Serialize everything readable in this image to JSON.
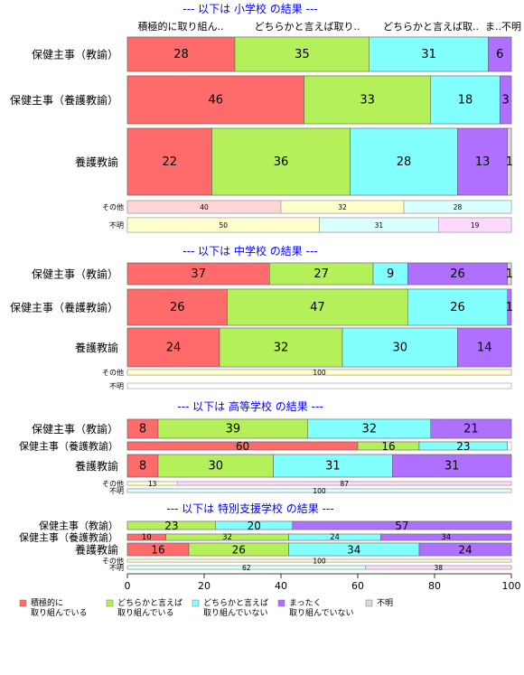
{
  "colors": {
    "積極的に取り組んでいる": "#ff6b6b",
    "どちらかと言えば取り組んでいる": "#b4f05a",
    "どちらかと言えば取り組んでいない": "#82ffff",
    "まったく取り組んでいない": "#b070ff",
    "不明": "#d9d9d9"
  },
  "light_colors": {
    "積極的に取り組んでいる": "#ffd6d6",
    "どちらかと言えば取り組んでいる": "#ffffcc",
    "どちらかと言えば取り組んでいない": "#d9ffff",
    "まったく取り組んでいない": "#ffd9ff",
    "不明": "#eeeeee"
  },
  "column_headers": [
    "積極的に取り組ん..",
    "どちらかと言えば取り..",
    "どちらかと言えば取..",
    "ま..",
    "不明"
  ],
  "legend": [
    {
      "key": "積極的に取り組んでいる",
      "line1": "積極的に",
      "line2": "取り組んでいる"
    },
    {
      "key": "どちらかと言えば取り組んでいる",
      "line1": "どちらかと言えば",
      "line2": "取り組んでいる"
    },
    {
      "key": "どちらかと言えば取り組んでいない",
      "line1": "どちらかと言えば",
      "line2": "取り組んでいない"
    },
    {
      "key": "まったく取り組んでいない",
      "line1": "まったく",
      "line2": "取り組んでいない"
    },
    {
      "key": "不明",
      "line1": "不明",
      "line2": ""
    }
  ],
  "chart_data": {
    "type": "bar",
    "orientation": "horizontal",
    "stacked": true,
    "xlim": [
      0,
      100
    ],
    "xticks": [
      0,
      20,
      40,
      60,
      80,
      100
    ],
    "series_names": [
      "積極的に取り組んでいる",
      "どちらかと言えば取り組んでいる",
      "どちらかと言えば取り組んでいない",
      "まったく取り組んでいない",
      "不明"
    ],
    "sections": [
      {
        "title": "--- 以下は 小学校 の結果 ---",
        "rows": [
          {
            "label": "保健主事（教諭）",
            "values": [
              28,
              35,
              31,
              6,
              0
            ]
          },
          {
            "label": "保健主事（養護教諭）",
            "values": [
              46,
              33,
              18,
              3,
              0
            ]
          },
          {
            "label": "養護教諭",
            "values": [
              22,
              36,
              28,
              13,
              1
            ]
          },
          {
            "label": "その他",
            "small": true,
            "values": [
              40,
              32,
              28,
              0,
              0
            ]
          },
          {
            "label": "不明",
            "small": true,
            "values": [
              0,
              50,
              31,
              19,
              0
            ]
          }
        ]
      },
      {
        "title": "--- 以下は 中学校 の結果 ---",
        "rows": [
          {
            "label": "保健主事（教諭）",
            "values": [
              37,
              27,
              9,
              26,
              1
            ]
          },
          {
            "label": "保健主事（養護教諭）",
            "values": [
              26,
              47,
              26,
              1,
              0
            ]
          },
          {
            "label": "養護教諭",
            "values": [
              24,
              32,
              30,
              14,
              0
            ]
          },
          {
            "label": "その他",
            "small": true,
            "values": [
              0,
              100,
              0,
              0,
              0
            ]
          },
          {
            "label": "不明",
            "small": true,
            "values": [
              0,
              0,
              0,
              0,
              0
            ]
          }
        ]
      },
      {
        "title": "--- 以下は 高等学校 の結果 ---",
        "rows": [
          {
            "label": "保健主事（教諭）",
            "values": [
              8,
              39,
              32,
              21,
              0
            ]
          },
          {
            "label": "保健主事（養護教諭）",
            "values": [
              60,
              16,
              23,
              0,
              0
            ]
          },
          {
            "label": "養護教諭",
            "values": [
              8,
              30,
              31,
              31,
              0
            ]
          },
          {
            "label": "その他",
            "small": true,
            "values": [
              0,
              13,
              0,
              87,
              0
            ]
          },
          {
            "label": "不明",
            "small": true,
            "values": [
              0,
              0,
              100,
              0,
              0
            ]
          }
        ]
      },
      {
        "title": "--- 以下は 特別支援学校 の結果 ---",
        "rows": [
          {
            "label": "保健主事（教諭）",
            "values": [
              0,
              23,
              20,
              57,
              0
            ]
          },
          {
            "label": "保健主事（養護教諭）",
            "values": [
              10,
              32,
              24,
              34,
              0
            ]
          },
          {
            "label": "養護教諭",
            "values": [
              16,
              26,
              34,
              24,
              0
            ]
          },
          {
            "label": "その他",
            "small": true,
            "values": [
              0,
              100,
              0,
              0,
              0
            ]
          },
          {
            "label": "不明",
            "small": true,
            "values": [
              0,
              0,
              62,
              38,
              0
            ]
          }
        ]
      }
    ]
  }
}
